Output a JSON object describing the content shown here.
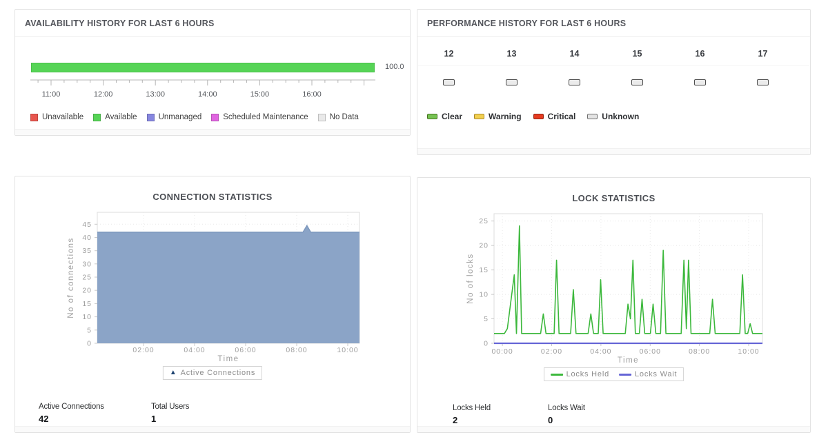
{
  "panels": {
    "availability": {
      "title": "AVAILABILITY HISTORY FOR LAST 6 HOURS",
      "bar_value_label": "100.0",
      "bar_color": "#56d456",
      "axis_ticks": [
        "11:00",
        "12:00",
        "13:00",
        "14:00",
        "15:00",
        "16:00"
      ],
      "legend": [
        {
          "label": "Unavailable",
          "color": "#e8564e"
        },
        {
          "label": "Available",
          "color": "#56d456"
        },
        {
          "label": "Unmanaged",
          "color": "#8787e0"
        },
        {
          "label": "Scheduled Maintenance",
          "color": "#e065e0"
        },
        {
          "label": "No Data",
          "color": "#e9e9e9"
        }
      ]
    },
    "performance": {
      "title": "PERFORMANCE HISTORY FOR LAST 6 HOURS",
      "hours": [
        {
          "label": "12",
          "status": "Unknown"
        },
        {
          "label": "13",
          "status": "Unknown"
        },
        {
          "label": "14",
          "status": "Unknown"
        },
        {
          "label": "15",
          "status": "Unknown"
        },
        {
          "label": "16",
          "status": "Unknown"
        },
        {
          "label": "17",
          "status": "Unknown"
        }
      ],
      "status_box": {
        "fill": "#ebebeb",
        "border": "#4d4d4d"
      },
      "legend": [
        {
          "label": "Clear",
          "fill": "#77c353",
          "border": "#45721f"
        },
        {
          "label": "Warning",
          "fill": "#f2d050",
          "border": "#a8872c"
        },
        {
          "label": "Critical",
          "fill": "#e63b20",
          "border": "#8f2413"
        },
        {
          "label": "Unknown",
          "fill": "#e4e4e4",
          "border": "#6e6e6e"
        }
      ]
    },
    "connections": {
      "stats": [
        {
          "label": "Active Connections",
          "value": "42"
        },
        {
          "label": "Total Users",
          "value": "1"
        }
      ]
    },
    "locks": {
      "stats": [
        {
          "label": "Locks Held",
          "value": "2"
        },
        {
          "label": "Locks Wait",
          "value": "0"
        }
      ]
    }
  },
  "chart_data": [
    {
      "type": "area",
      "title": "CONNECTION STATISTICS",
      "xlabel": "Time",
      "ylabel": "No of connections",
      "ylim": [
        0,
        49.5
      ],
      "yticks": [
        0,
        5,
        10,
        15,
        20,
        25,
        30,
        35,
        40,
        45
      ],
      "xlim": [
        0.19,
        10.46
      ],
      "xticks": [
        {
          "value": 2,
          "label": "02:00"
        },
        {
          "value": 4,
          "label": "04:00"
        },
        {
          "value": 6,
          "label": "06:00"
        },
        {
          "value": 8,
          "label": "08:00"
        },
        {
          "value": 10,
          "label": "10:00"
        }
      ],
      "grid": true,
      "legend_position": "bottom",
      "series": [
        {
          "name": "Active Connections",
          "fill": "#8ba4c7",
          "stroke": "#7e98bd",
          "width": 1.5,
          "points": [
            [
              0.19,
              42
            ],
            [
              8.25,
              42
            ],
            [
              8.4,
              44.5
            ],
            [
              8.55,
              42
            ],
            [
              10.46,
              42
            ]
          ]
        }
      ],
      "legend": [
        {
          "label": "Active Connections",
          "marker": "triangle",
          "color": "#1d4370"
        }
      ]
    },
    {
      "type": "line",
      "title": "LOCK STATISTICS",
      "xlabel": "Time",
      "ylabel": "No of locks",
      "ylim": [
        0,
        26.5
      ],
      "yticks": [
        0,
        5,
        10,
        15,
        20,
        25
      ],
      "xlim": [
        -0.34,
        10.56
      ],
      "xticks": [
        {
          "value": 0,
          "label": "00:00"
        },
        {
          "value": 2,
          "label": "02:00"
        },
        {
          "value": 4,
          "label": "04:00"
        },
        {
          "value": 6,
          "label": "06:00"
        },
        {
          "value": 8,
          "label": "08:00"
        },
        {
          "value": 10,
          "label": "10:00"
        }
      ],
      "grid": true,
      "legend_position": "bottom",
      "series": [
        {
          "name": "Locks Held",
          "color": "#3cb83c",
          "width": 1.6,
          "points": [
            [
              -0.34,
              2
            ],
            [
              0.08,
              2
            ],
            [
              0.2,
              3
            ],
            [
              0.48,
              14
            ],
            [
              0.57,
              2
            ],
            [
              0.69,
              24
            ],
            [
              0.78,
              2
            ],
            [
              1.55,
              2
            ],
            [
              1.66,
              6
            ],
            [
              1.77,
              2
            ],
            [
              2.1,
              2
            ],
            [
              2.2,
              17
            ],
            [
              2.3,
              2
            ],
            [
              2.77,
              2
            ],
            [
              2.88,
              11
            ],
            [
              2.99,
              2
            ],
            [
              3.48,
              2
            ],
            [
              3.59,
              6
            ],
            [
              3.7,
              2
            ],
            [
              3.89,
              2
            ],
            [
              3.99,
              13
            ],
            [
              4.09,
              2
            ],
            [
              4.99,
              2
            ],
            [
              5.1,
              8
            ],
            [
              5.2,
              5
            ],
            [
              5.3,
              17
            ],
            [
              5.4,
              2
            ],
            [
              5.56,
              2
            ],
            [
              5.67,
              9
            ],
            [
              5.78,
              2
            ],
            [
              6.01,
              2
            ],
            [
              6.12,
              8
            ],
            [
              6.23,
              2
            ],
            [
              6.42,
              2
            ],
            [
              6.53,
              19
            ],
            [
              6.64,
              2
            ],
            [
              7.26,
              2
            ],
            [
              7.37,
              17
            ],
            [
              7.47,
              3
            ],
            [
              7.56,
              17
            ],
            [
              7.66,
              2
            ],
            [
              8.42,
              2
            ],
            [
              8.53,
              9
            ],
            [
              8.64,
              2
            ],
            [
              9.64,
              2
            ],
            [
              9.75,
              14
            ],
            [
              9.86,
              2
            ],
            [
              9.96,
              2
            ],
            [
              10.06,
              4
            ],
            [
              10.16,
              2
            ],
            [
              10.56,
              2
            ]
          ]
        },
        {
          "name": "Locks Wait",
          "color": "#6565d6",
          "width": 2.2,
          "points": [
            [
              -0.34,
              0
            ],
            [
              10.56,
              0
            ]
          ]
        }
      ],
      "legend": [
        {
          "label": "Locks Held",
          "marker": "line",
          "color": "#3cb83c"
        },
        {
          "label": "Locks Wait",
          "marker": "line",
          "color": "#6565d6"
        }
      ]
    }
  ]
}
